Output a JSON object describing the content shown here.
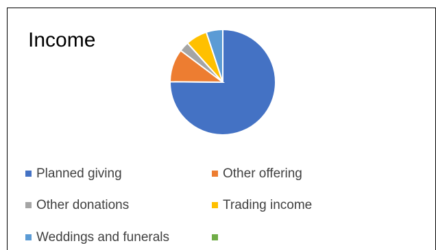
{
  "chart_data": {
    "type": "pie",
    "title": "Income",
    "categories": [
      "Planned giving",
      "Other offering",
      "Other donations",
      "Trading income",
      "Weddings and funerals",
      ""
    ],
    "values": [
      74,
      10,
      3,
      6.5,
      5,
      0
    ],
    "colors": [
      "#4472C4",
      "#ED7D31",
      "#A5A5A5",
      "#FFC000",
      "#5B9BD5",
      "#70AD47"
    ],
    "legend_position": "bottom"
  }
}
